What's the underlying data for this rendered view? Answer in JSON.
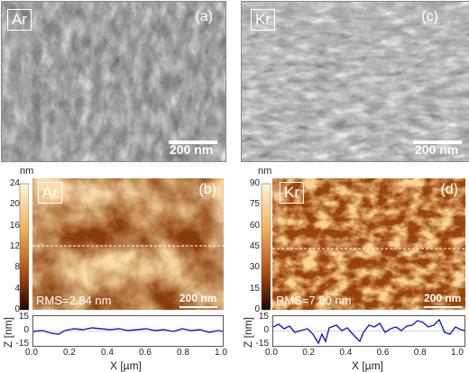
{
  "panels": {
    "a": {
      "element": "Ar",
      "letter": "(a)",
      "scale": "200 nm"
    },
    "b": {
      "element": "Ar",
      "letter": "(b)",
      "scale": "200 nm",
      "rms": "RMS=2.84 nm",
      "colorbar_unit": "nm",
      "colorbar_ticks": [
        "24",
        "20",
        "16",
        "12",
        "8",
        "4",
        "0"
      ]
    },
    "c": {
      "element": "Kr",
      "letter": "(c)",
      "scale": "200 nm"
    },
    "d": {
      "element": "Kr",
      "letter": "(d)",
      "scale": "200 nm",
      "rms": "RMS=7.80 nm",
      "colorbar_unit": "nm",
      "colorbar_ticks": [
        "90",
        "75",
        "60",
        "45",
        "30",
        "15",
        "0"
      ]
    }
  },
  "profiles": {
    "ylabel": "Z [nm]",
    "xlabel": "X [µm]",
    "yticks": [
      "15",
      "0",
      "-15"
    ],
    "xticks": [
      "0.0",
      "0.2",
      "0.4",
      "0.6",
      "0.8",
      "1.0"
    ]
  },
  "colors": {
    "afm_light": "#f7d79a",
    "afm_mid": "#c8761e",
    "afm_dark": "#3a1004",
    "profile_line": "#1a1acc"
  }
}
